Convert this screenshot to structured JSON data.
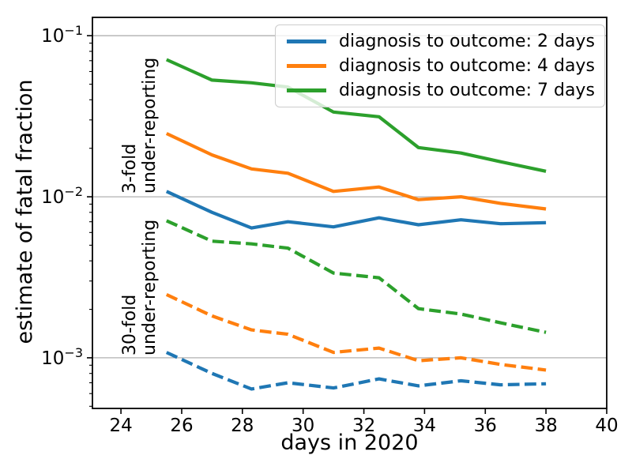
{
  "chart_data": {
    "type": "line",
    "title": "",
    "xlabel": "days in 2020",
    "ylabel": "estimate of fatal fraction",
    "yscale": "log",
    "xlim": [
      23.06,
      40
    ],
    "ylim": [
      0.000485,
      0.13
    ],
    "xticks": [
      24,
      26,
      28,
      30,
      32,
      34,
      36,
      38,
      40
    ],
    "yticks": [
      {
        "value": 0.1,
        "base": "10",
        "exp": "−1"
      },
      {
        "value": 0.01,
        "base": "10",
        "exp": "−2"
      },
      {
        "value": 0.001,
        "base": "10",
        "exp": "−3"
      }
    ],
    "grid": "horizontal-major-only",
    "legend_position": "upper right",
    "x": [
      25.5,
      27.0,
      28.3,
      29.5,
      31.0,
      32.5,
      33.8,
      35.2,
      36.5,
      38.0
    ],
    "series": [
      {
        "name": "diagnosis to outcome: 2 days",
        "color": "#1f77b4",
        "style": "solid",
        "group": "3-fold under-reporting",
        "in_legend": true,
        "values": [
          0.0108,
          0.008,
          0.0064,
          0.007,
          0.0065,
          0.0074,
          0.0067,
          0.0072,
          0.0068,
          0.0069
        ]
      },
      {
        "name": "diagnosis to outcome: 4 days",
        "color": "#ff7f0e",
        "style": "solid",
        "group": "3-fold under-reporting",
        "in_legend": true,
        "values": [
          0.0247,
          0.0182,
          0.0149,
          0.014,
          0.0108,
          0.0115,
          0.0096,
          0.01,
          0.0091,
          0.0084
        ]
      },
      {
        "name": "diagnosis to outcome: 7 days",
        "color": "#2ca02c",
        "style": "solid",
        "group": "3-fold under-reporting",
        "in_legend": true,
        "values": [
          0.071,
          0.053,
          0.051,
          0.048,
          0.0336,
          0.0314,
          0.0202,
          0.0187,
          0.0165,
          0.0144
        ]
      },
      {
        "name": "diagnosis to outcome: 2 days",
        "color": "#1f77b4",
        "style": "dashed",
        "group": "30-fold under-reporting",
        "in_legend": false,
        "values": [
          0.00108,
          0.0008,
          0.00064,
          0.0007,
          0.00065,
          0.00074,
          0.00067,
          0.00072,
          0.00068,
          0.00069
        ]
      },
      {
        "name": "diagnosis to outcome: 4 days",
        "color": "#ff7f0e",
        "style": "dashed",
        "group": "30-fold under-reporting",
        "in_legend": false,
        "values": [
          0.00247,
          0.00182,
          0.00149,
          0.0014,
          0.00108,
          0.00115,
          0.00096,
          0.001,
          0.00091,
          0.00084
        ]
      },
      {
        "name": "diagnosis to outcome: 7 days",
        "color": "#2ca02c",
        "style": "dashed",
        "group": "30-fold under-reporting",
        "in_legend": false,
        "values": [
          0.0071,
          0.0053,
          0.0051,
          0.0048,
          0.00336,
          0.00314,
          0.00202,
          0.00187,
          0.00165,
          0.00144
        ]
      }
    ],
    "annotations": [
      {
        "line1": "3-fold",
        "line2": "under-reporting"
      },
      {
        "line1": "30-fold",
        "line2": "under-reporting"
      }
    ],
    "colors": {
      "axis": "#000000",
      "grid": "#b0b0b0",
      "legend_border": "#cccccc",
      "background": "#ffffff"
    }
  }
}
